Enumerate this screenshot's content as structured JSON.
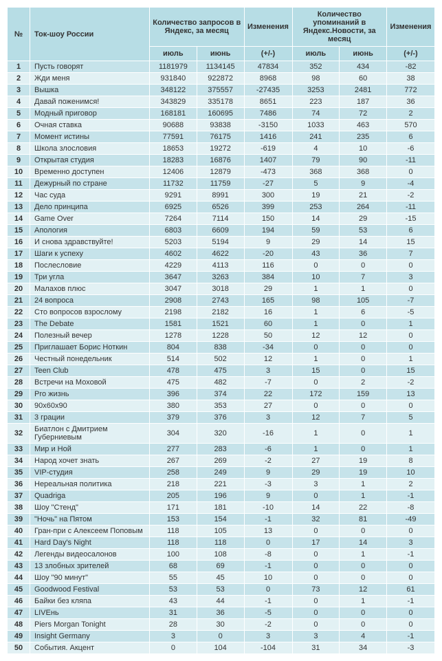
{
  "table": {
    "header": {
      "num": "№",
      "name": "Ток-шоу России",
      "queries_group": "Количество запросов в Яндекс, за месяц",
      "mentions_group": "Количество упоминаний в Яндекс.Новости, за месяц",
      "change": "Изменения",
      "july": "июль",
      "june": "июнь",
      "delta": "(+/-)"
    },
    "rows": [
      {
        "n": "1",
        "name": "Пусть говорят",
        "q1": "1181979",
        "q2": "1134145",
        "d1": "47834",
        "m1": "352",
        "m2": "434",
        "d2": "-82"
      },
      {
        "n": "2",
        "name": "Жди меня",
        "q1": "931840",
        "q2": "922872",
        "d1": "8968",
        "m1": "98",
        "m2": "60",
        "d2": "38"
      },
      {
        "n": "3",
        "name": "Вышка",
        "q1": "348122",
        "q2": "375557",
        "d1": "-27435",
        "m1": "3253",
        "m2": "2481",
        "d2": "772"
      },
      {
        "n": "4",
        "name": "Давай поженимся!",
        "q1": "343829",
        "q2": "335178",
        "d1": "8651",
        "m1": "223",
        "m2": "187",
        "d2": "36"
      },
      {
        "n": "5",
        "name": "Модный приговор",
        "q1": "168181",
        "q2": "160695",
        "d1": "7486",
        "m1": "74",
        "m2": "72",
        "d2": "2"
      },
      {
        "n": "6",
        "name": "Очная ставка",
        "q1": "90688",
        "q2": "93838",
        "d1": "-3150",
        "m1": "1033",
        "m2": "463",
        "d2": "570"
      },
      {
        "n": "7",
        "name": "Момент истины",
        "q1": "77591",
        "q2": "76175",
        "d1": "1416",
        "m1": "241",
        "m2": "235",
        "d2": "6"
      },
      {
        "n": "8",
        "name": "Школа злословия",
        "q1": "18653",
        "q2": "19272",
        "d1": "-619",
        "m1": "4",
        "m2": "10",
        "d2": "-6"
      },
      {
        "n": "9",
        "name": "Открытая студия",
        "q1": "18283",
        "q2": "16876",
        "d1": "1407",
        "m1": "79",
        "m2": "90",
        "d2": "-11"
      },
      {
        "n": "10",
        "name": "Временно доступен",
        "q1": "12406",
        "q2": "12879",
        "d1": "-473",
        "m1": "368",
        "m2": "368",
        "d2": "0"
      },
      {
        "n": "11",
        "name": "Дежурный по стране",
        "q1": "11732",
        "q2": "11759",
        "d1": "-27",
        "m1": "5",
        "m2": "9",
        "d2": "-4"
      },
      {
        "n": "12",
        "name": "Час суда",
        "q1": "9291",
        "q2": "8991",
        "d1": "300",
        "m1": "19",
        "m2": "21",
        "d2": "-2"
      },
      {
        "n": "13",
        "name": "Дело принципа",
        "q1": "6925",
        "q2": "6526",
        "d1": "399",
        "m1": "253",
        "m2": "264",
        "d2": "-11"
      },
      {
        "n": "14",
        "name": "Game Over",
        "q1": "7264",
        "q2": "7114",
        "d1": "150",
        "m1": "14",
        "m2": "29",
        "d2": "-15"
      },
      {
        "n": "15",
        "name": "Апология",
        "q1": "6803",
        "q2": "6609",
        "d1": "194",
        "m1": "59",
        "m2": "53",
        "d2": "6"
      },
      {
        "n": "16",
        "name": "И снова здравствуйте!",
        "q1": "5203",
        "q2": "5194",
        "d1": "9",
        "m1": "29",
        "m2": "14",
        "d2": "15"
      },
      {
        "n": "17",
        "name": "Шаги к успеху",
        "q1": "4602",
        "q2": "4622",
        "d1": "-20",
        "m1": "43",
        "m2": "36",
        "d2": "7"
      },
      {
        "n": "18",
        "name": "Послесловие",
        "q1": "4229",
        "q2": "4113",
        "d1": "116",
        "m1": "0",
        "m2": "0",
        "d2": "0"
      },
      {
        "n": "19",
        "name": "Три угла",
        "q1": "3647",
        "q2": "3263",
        "d1": "384",
        "m1": "10",
        "m2": "7",
        "d2": "3"
      },
      {
        "n": "20",
        "name": "Малахов плюс",
        "q1": "3047",
        "q2": "3018",
        "d1": "29",
        "m1": "1",
        "m2": "1",
        "d2": "0"
      },
      {
        "n": "21",
        "name": "24 вопроса",
        "q1": "2908",
        "q2": "2743",
        "d1": "165",
        "m1": "98",
        "m2": "105",
        "d2": "-7"
      },
      {
        "n": "22",
        "name": "Сто вопросов взрослому",
        "q1": "2198",
        "q2": "2182",
        "d1": "16",
        "m1": "1",
        "m2": "6",
        "d2": "-5"
      },
      {
        "n": "23",
        "name": "The Debate",
        "q1": "1581",
        "q2": "1521",
        "d1": "60",
        "m1": "1",
        "m2": "0",
        "d2": "1"
      },
      {
        "n": "24",
        "name": "Полезный вечер",
        "q1": "1278",
        "q2": "1228",
        "d1": "50",
        "m1": "12",
        "m2": "12",
        "d2": "0"
      },
      {
        "n": "25",
        "name": "Приглашает Борис Ноткин",
        "q1": "804",
        "q2": "838",
        "d1": "-34",
        "m1": "0",
        "m2": "0",
        "d2": "0"
      },
      {
        "n": "26",
        "name": "Честный понедельник",
        "q1": "514",
        "q2": "502",
        "d1": "12",
        "m1": "1",
        "m2": "0",
        "d2": "1"
      },
      {
        "n": "27",
        "name": "Teen Club",
        "q1": "478",
        "q2": "475",
        "d1": "3",
        "m1": "15",
        "m2": "0",
        "d2": "15"
      },
      {
        "n": "28",
        "name": "Встречи на Моховой",
        "q1": "475",
        "q2": "482",
        "d1": "-7",
        "m1": "0",
        "m2": "2",
        "d2": "-2"
      },
      {
        "n": "29",
        "name": "Pro жизнь",
        "q1": "396",
        "q2": "374",
        "d1": "22",
        "m1": "172",
        "m2": "159",
        "d2": "13"
      },
      {
        "n": "30",
        "name": "90x60x90",
        "q1": "380",
        "q2": "353",
        "d1": "27",
        "m1": "0",
        "m2": "0",
        "d2": "0"
      },
      {
        "n": "31",
        "name": "3 грации",
        "q1": "379",
        "q2": "376",
        "d1": "3",
        "m1": "12",
        "m2": "7",
        "d2": "5"
      },
      {
        "n": "32",
        "name": "Биатлон с Дмитрием Губерниевым",
        "q1": "304",
        "q2": "320",
        "d1": "-16",
        "m1": "1",
        "m2": "0",
        "d2": "1"
      },
      {
        "n": "33",
        "name": "Мир и Ной",
        "q1": "277",
        "q2": "283",
        "d1": "-6",
        "m1": "1",
        "m2": "0",
        "d2": "1"
      },
      {
        "n": "34",
        "name": "Народ хочет знать",
        "q1": "267",
        "q2": "269",
        "d1": "-2",
        "m1": "27",
        "m2": "19",
        "d2": "8"
      },
      {
        "n": "35",
        "name": "VIP-студия",
        "q1": "258",
        "q2": "249",
        "d1": "9",
        "m1": "29",
        "m2": "19",
        "d2": "10"
      },
      {
        "n": "36",
        "name": "Нереальная политика",
        "q1": "218",
        "q2": "221",
        "d1": "-3",
        "m1": "3",
        "m2": "1",
        "d2": "2"
      },
      {
        "n": "37",
        "name": "Quadriga",
        "q1": "205",
        "q2": "196",
        "d1": "9",
        "m1": "0",
        "m2": "1",
        "d2": "-1"
      },
      {
        "n": "38",
        "name": "Шоу \"Стенд\"",
        "q1": "171",
        "q2": "181",
        "d1": "-10",
        "m1": "14",
        "m2": "22",
        "d2": "-8"
      },
      {
        "n": "39",
        "name": "\"Ночь\" на Пятом",
        "q1": "153",
        "q2": "154",
        "d1": "-1",
        "m1": "32",
        "m2": "81",
        "d2": "-49"
      },
      {
        "n": "40",
        "name": "Гран-при с Алексеем Поповым",
        "q1": "118",
        "q2": "105",
        "d1": "13",
        "m1": "0",
        "m2": "0",
        "d2": "0"
      },
      {
        "n": "41",
        "name": "Hard Day's Night",
        "q1": "118",
        "q2": "118",
        "d1": "0",
        "m1": "17",
        "m2": "14",
        "d2": "3"
      },
      {
        "n": "42",
        "name": "Легенды видеосалонов",
        "q1": "100",
        "q2": "108",
        "d1": "-8",
        "m1": "0",
        "m2": "1",
        "d2": "-1"
      },
      {
        "n": "43",
        "name": "13 злобных зрителей",
        "q1": "68",
        "q2": "69",
        "d1": "-1",
        "m1": "0",
        "m2": "0",
        "d2": "0"
      },
      {
        "n": "44",
        "name": "Шоу \"90 минут\"",
        "q1": "55",
        "q2": "45",
        "d1": "10",
        "m1": "0",
        "m2": "0",
        "d2": "0"
      },
      {
        "n": "45",
        "name": "Goodwood Festival",
        "q1": "53",
        "q2": "53",
        "d1": "0",
        "m1": "73",
        "m2": "12",
        "d2": "61"
      },
      {
        "n": "46",
        "name": "Байки без кляпа",
        "q1": "43",
        "q2": "44",
        "d1": "-1",
        "m1": "0",
        "m2": "1",
        "d2": "-1"
      },
      {
        "n": "47",
        "name": "LIVEнь",
        "q1": "31",
        "q2": "36",
        "d1": "-5",
        "m1": "0",
        "m2": "0",
        "d2": "0"
      },
      {
        "n": "48",
        "name": "Piers Morgan Tonight",
        "q1": "28",
        "q2": "30",
        "d1": "-2",
        "m1": "0",
        "m2": "0",
        "d2": "0"
      },
      {
        "n": "49",
        "name": "Insight Germany",
        "q1": "3",
        "q2": "0",
        "d1": "3",
        "m1": "3",
        "m2": "4",
        "d2": "-1"
      },
      {
        "n": "50",
        "name": "События. Акцент",
        "q1": "0",
        "q2": "104",
        "d1": "-104",
        "m1": "31",
        "m2": "34",
        "d2": "-3"
      }
    ]
  }
}
